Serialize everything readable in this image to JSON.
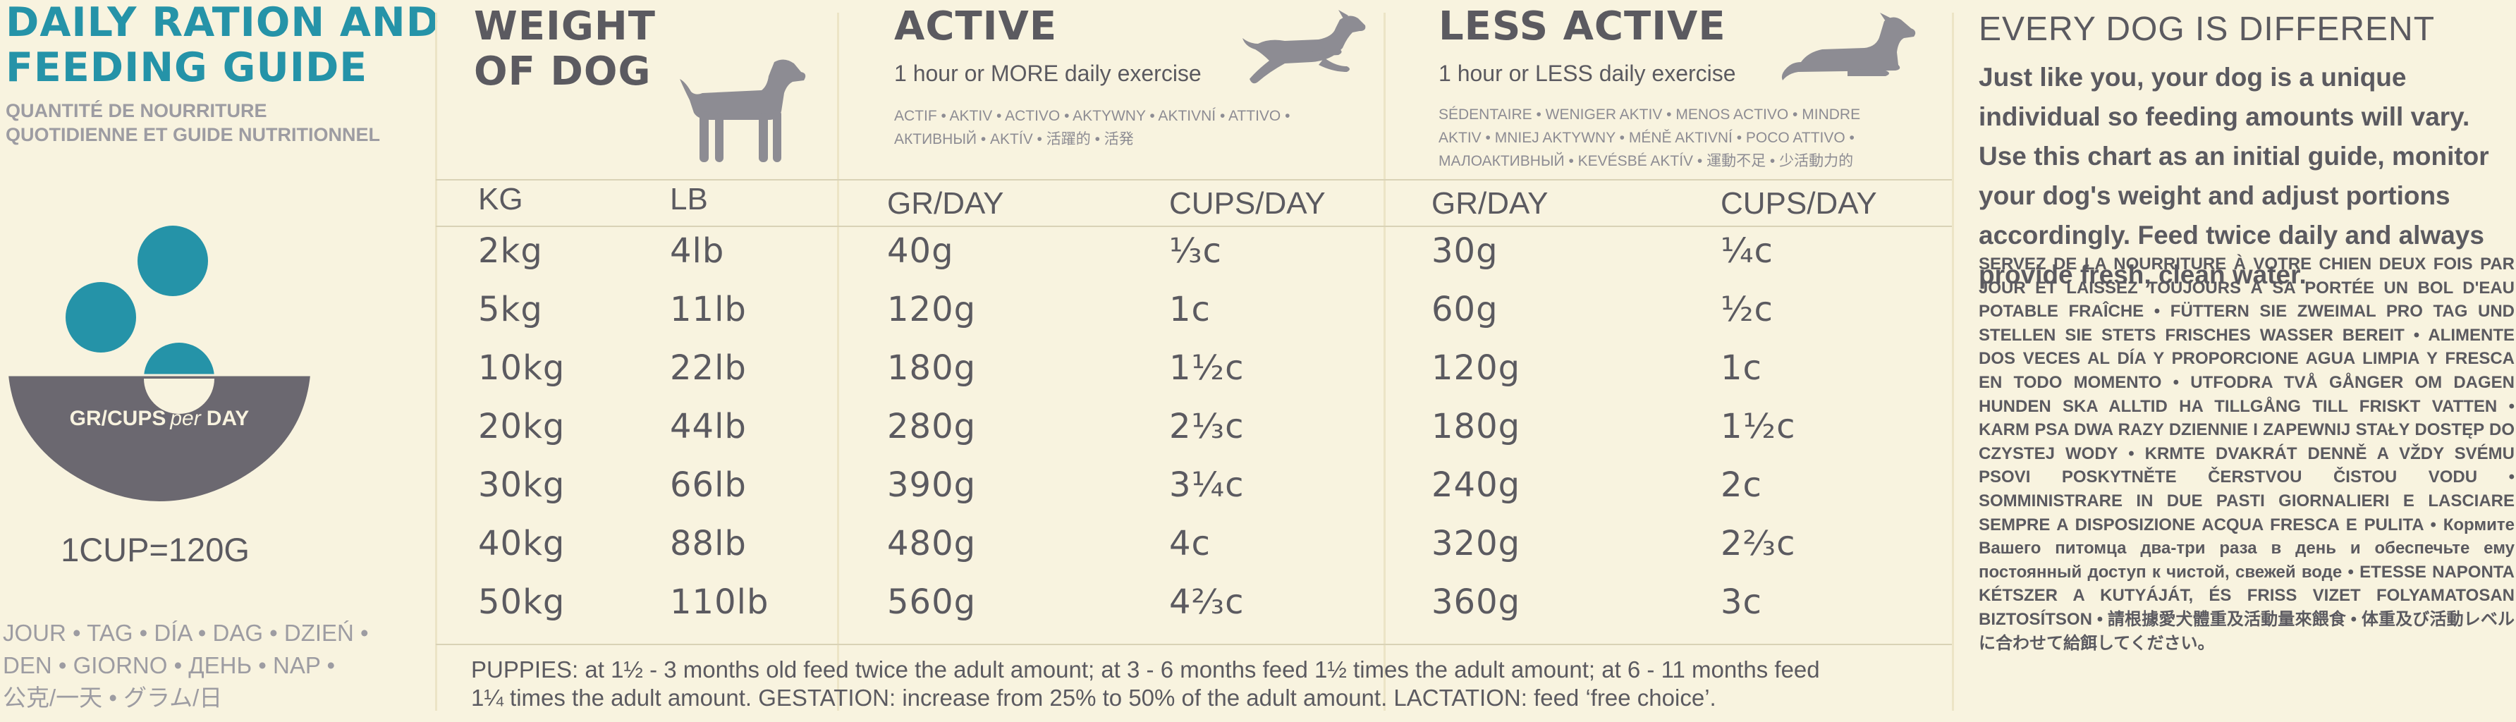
{
  "brand": {
    "title_line1": "DAILY RATION AND",
    "title_line2": "FEEDING GUIDE",
    "subtitle_line1": "QUANTITÉ DE NOURRITURE",
    "subtitle_line2": "QUOTIDIENNE ET GUIDE NUTRITIONNEL",
    "bowl_label_main": "GR/CUPS",
    "bowl_label_per": "per",
    "bowl_label_day": "DAY",
    "cup_conversion": "1CUP=120G",
    "per_day_langs_1": "JOUR • TAG • DÍA • DAG • DZIEŃ •",
    "per_day_langs_2": "DEN • GIORNO • ДЕНЬ •   NAP •",
    "per_day_langs_3": "公克/一天 • グラム/日"
  },
  "weight_header": {
    "line1": "WEIGHT",
    "line2": "OF DOG"
  },
  "active_header": {
    "title": "ACTIVE",
    "subtitle": "1 hour or MORE daily exercise",
    "langs_1": "ACTIF • AKTIV • ACTIVO • AKTYWNY • AKTIVNÍ • ATTIVO •",
    "langs_2": "АКТИВНЫЙ • AKTÍV • 活躍的 • 活発"
  },
  "less_active_header": {
    "title": "LESS ACTIVE",
    "subtitle": "1 hour or LESS daily exercise",
    "langs_1": "SÉDENTAIRE • WENIGER AKTIV • MENOS ACTIVO • MINDRE",
    "langs_2": "AKTIV • MNIEJ AKTYWNY • MÉNĚ AKTIVNÍ • POCO ATTIVO •",
    "langs_3": "МАЛОАКТИВНЫЙ • KEVÉSBÉ AKTÍV • 運動不足 • 少活動力的"
  },
  "table": {
    "columns": [
      "KG",
      "LB",
      "GR/DAY",
      "CUPS/DAY",
      "GR/DAY",
      "CUPS/DAY"
    ],
    "rows": [
      [
        "2kg",
        "4lb",
        "40g",
        "⅓c",
        "30g",
        "¼c"
      ],
      [
        "5kg",
        "11lb",
        "120g",
        "1c",
        "60g",
        "½c"
      ],
      [
        "10kg",
        "22lb",
        "180g",
        "1½c",
        "120g",
        "1c"
      ],
      [
        "20kg",
        "44lb",
        "280g",
        "2⅓c",
        "180g",
        "1½c"
      ],
      [
        "30kg",
        "66lb",
        "390g",
        "3¼c",
        "240g",
        "2c"
      ],
      [
        "40kg",
        "88lb",
        "480g",
        "4c",
        "320g",
        "2⅔c"
      ],
      [
        "50kg",
        "110lb",
        "560g",
        "4⅔c",
        "360g",
        "3c"
      ]
    ]
  },
  "footnote": {
    "line1": "PUPPIES: at 1½ - 3 months old feed twice the adult amount; at 3 - 6 months feed 1½ times the adult amount; at 6 - 11 months feed",
    "line2": "1¼ times the adult amount. GESTATION: increase from 25% to 50% of the adult amount. LACTATION: feed ‘free choice’."
  },
  "info": {
    "title": "EVERY DOG IS DIFFERENT",
    "body": "Just like you, your dog is a unique individual so feeding amounts will vary. Use this chart as an initial guide, monitor your dog's weight and adjust portions accordingly. Feed twice daily and always provide fresh, clean water.",
    "multilingual": "SERVEZ DE LA NOURRITURE À VOTRE CHIEN DEUX FOIS PAR JOUR ET LAISSEZ TOUJOURS À SA PORTÉE UN BOL D'EAU POTABLE FRAÎCHE • FÜTTERN SIE ZWEIMAL PRO TAG UND STELLEN SIE STETS FRISCHES WASSER BEREIT • ALIMENTE DOS VECES AL DÍA Y PROPORCIONE AGUA LIMPIA Y FRESCA EN TODO MOMENTO • UTFODRA TVÅ GÅNGER OM DAGEN HUNDEN SKA ALLTID HA TILLGÅNG TILL FRISKT VATTEN • KARM PSA DWA RAZY DZIENNIE I ZAPEWNIJ STAŁY DOSTĘP DO CZYSTEJ WODY • KRMTE DVAKRÁT DENNĚ A VŽDY SVÉMU PSOVI POSKYTNĚTE ČERSTVOU ČISTOU VODU • SOMMINISTRARE IN DUE PASTI GIORNALIERI E LASCIARE SEMPRE A DISPOSIZIONE ACQUA FRESCA E PULITA • Кормите Вашего питомца два-три раза в день и обеспечьте ему постоянный доступ к чистой, свежей воде • ETESSE NAPONTA KÉTSZER A KUTYÁJÁT, ÉS FRISS VIZET FOLYAMATOSAN BIZTOSÍTSON • 請根據愛犬體重及活動量來餵食 • 体重及び活動レベルに合わせて給餌してください。"
  },
  "colors": {
    "background": "#f8f3df",
    "accent_teal": "#2593a8",
    "text_gray": "#5b5a60",
    "muted_gray": "#9d9ca2",
    "bowl_gray": "#6b6870"
  },
  "icons": [
    "standing-dog-icon",
    "running-dog-icon",
    "lying-dog-icon",
    "food-bowl-icon",
    "kibble-icon"
  ]
}
